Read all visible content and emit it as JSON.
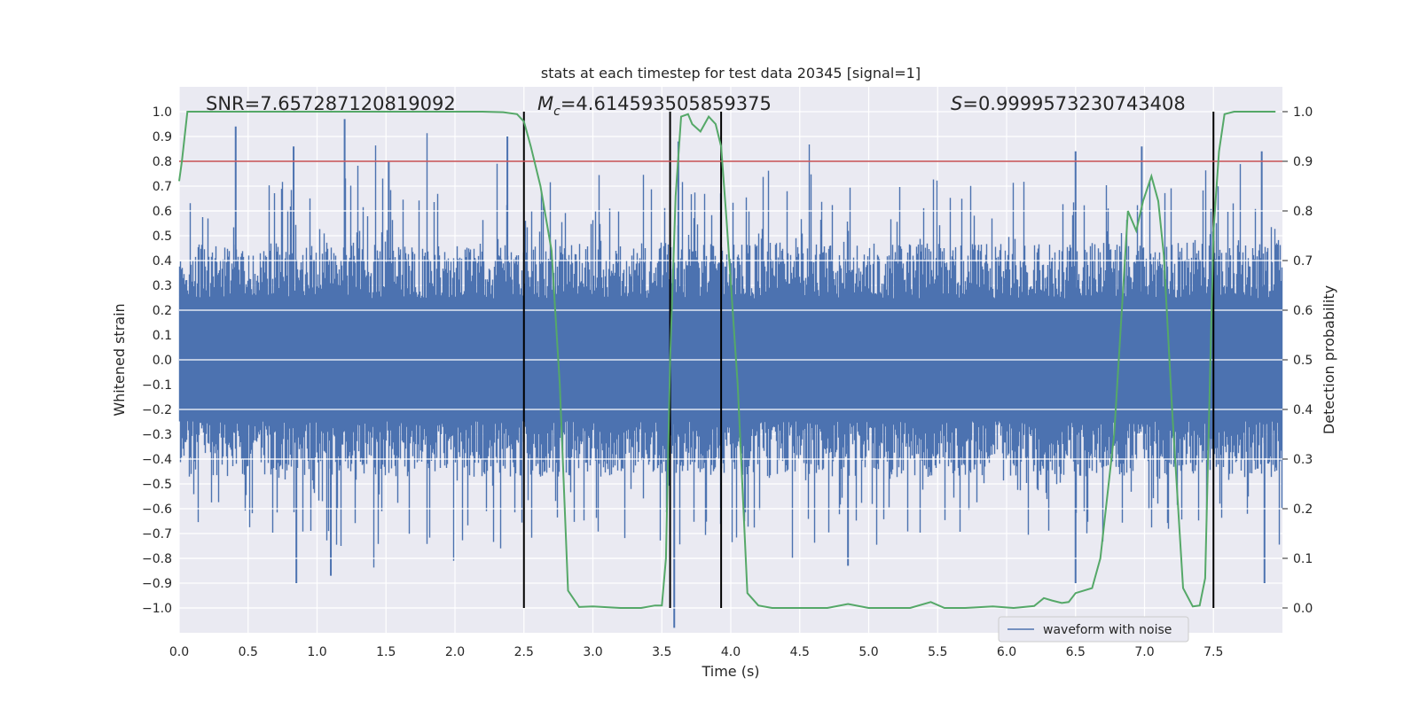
{
  "chart_data": {
    "type": "line",
    "title": "stats at each timestep for test data 20345 [signal=1]",
    "xlabel": "Time (s)",
    "ylabel": "Whitened strain",
    "y2label": "Detection probability",
    "xlim": [
      0.0,
      8.0
    ],
    "ylim": [
      -1.1,
      1.1
    ],
    "y2lim": [
      -0.05,
      1.05
    ],
    "x_ticks": [
      0.0,
      0.5,
      1.0,
      1.5,
      2.0,
      2.5,
      3.0,
      3.5,
      4.0,
      4.5,
      5.0,
      5.5,
      6.0,
      6.5,
      7.0,
      7.5
    ],
    "x_tick_labels": [
      "0.0",
      "0.5",
      "1.0",
      "1.5",
      "2.0",
      "2.5",
      "3.0",
      "3.5",
      "4.0",
      "4.5",
      "5.0",
      "5.5",
      "6.0",
      "6.5",
      "7.0",
      "7.5"
    ],
    "y_ticks": [
      1.0,
      0.9,
      0.8,
      0.7,
      0.6,
      0.5,
      0.4,
      0.3,
      0.2,
      0.1,
      0.0,
      -0.1,
      -0.2,
      -0.3,
      -0.4,
      -0.5,
      -0.6,
      -0.7,
      -0.8,
      -0.9,
      -1.0
    ],
    "y_tick_labels": [
      "1.0",
      "0.9",
      "0.8",
      "0.7",
      "0.6",
      "0.5",
      "0.4",
      "0.3",
      "0.2",
      "0.1",
      "0.0",
      "−0.1",
      "−0.2",
      "−0.3",
      "−0.4",
      "−0.5",
      "−0.6",
      "−0.7",
      "−0.8",
      "−0.9",
      "−1.0"
    ],
    "y2_ticks": [
      1.0,
      0.9,
      0.8,
      0.7,
      0.6,
      0.5,
      0.4,
      0.3,
      0.2,
      0.1,
      0.0
    ],
    "y2_tick_labels": [
      "1.0",
      "0.9",
      "0.8",
      "0.7",
      "0.6",
      "0.5",
      "0.4",
      "0.3",
      "0.2",
      "0.1",
      "0.0"
    ],
    "annotations": {
      "snr": "SNR=7.657287120819092",
      "mc_symbol": "M",
      "mc_subscript": "c",
      "mc_value": "=4.614593505859375",
      "s_symbol": "S",
      "s_value": "=0.9999573230743408"
    },
    "threshold": {
      "y2": 0.9,
      "color": "#c44e52"
    },
    "vertical_lines": [
      2.5,
      3.56,
      3.93,
      7.5
    ],
    "vertical_line_y2_range": [
      0.0,
      1.0
    ],
    "waveform": {
      "name": "waveform with noise",
      "color": "#4c72b0",
      "x_range": [
        0.0,
        8.0
      ],
      "envelope": 0.45,
      "notable_peaks": [
        {
          "x": 0.41,
          "y": 0.94
        },
        {
          "x": 0.83,
          "y": 0.86
        },
        {
          "x": 1.2,
          "y": 0.97
        },
        {
          "x": 1.52,
          "y": 0.8
        },
        {
          "x": 2.38,
          "y": 0.9
        },
        {
          "x": 3.62,
          "y": 0.88
        },
        {
          "x": 6.5,
          "y": 0.84
        },
        {
          "x": 6.98,
          "y": 0.86
        },
        {
          "x": 7.85,
          "y": 0.84
        },
        {
          "x": 0.85,
          "y": -0.9
        },
        {
          "x": 1.1,
          "y": -0.87
        },
        {
          "x": 3.59,
          "y": -1.08
        },
        {
          "x": 4.85,
          "y": -0.83
        },
        {
          "x": 6.5,
          "y": -0.9
        },
        {
          "x": 7.87,
          "y": -0.9
        }
      ]
    },
    "probability": {
      "name": "Detection probability",
      "color": "#55a868",
      "x": [
        0.0,
        0.02,
        0.06,
        0.2,
        0.5,
        1.0,
        1.5,
        2.0,
        2.2,
        2.35,
        2.45,
        2.5,
        2.55,
        2.62,
        2.7,
        2.76,
        2.82,
        2.9,
        3.0,
        3.2,
        3.35,
        3.45,
        3.5,
        3.53,
        3.56,
        3.6,
        3.64,
        3.69,
        3.72,
        3.78,
        3.84,
        3.89,
        3.93,
        3.97,
        4.05,
        4.12,
        4.2,
        4.3,
        4.5,
        4.7,
        4.85,
        5.0,
        5.2,
        5.3,
        5.45,
        5.55,
        5.7,
        5.9,
        6.05,
        6.2,
        6.27,
        6.33,
        6.4,
        6.45,
        6.5,
        6.62,
        6.68,
        6.78,
        6.88,
        6.94,
        6.99,
        7.05,
        7.1,
        7.14,
        7.2,
        7.28,
        7.35,
        7.4,
        7.44,
        7.5,
        7.54,
        7.58,
        7.65,
        7.75,
        7.95
      ],
      "y": [
        0.86,
        0.9,
        1.0,
        1.0,
        1.0,
        1.0,
        1.0,
        1.0,
        1.0,
        0.999,
        0.995,
        0.98,
        0.93,
        0.85,
        0.72,
        0.45,
        0.035,
        0.002,
        0.003,
        0.0,
        0.0,
        0.005,
        0.005,
        0.1,
        0.5,
        0.83,
        0.99,
        0.995,
        0.975,
        0.96,
        0.99,
        0.975,
        0.93,
        0.78,
        0.45,
        0.03,
        0.005,
        0.0,
        0.0,
        0.0,
        0.008,
        0.0,
        0.0,
        0.0,
        0.012,
        0.0,
        0.0,
        0.003,
        0.0,
        0.004,
        0.02,
        0.015,
        0.01,
        0.012,
        0.03,
        0.04,
        0.1,
        0.35,
        0.8,
        0.76,
        0.82,
        0.87,
        0.82,
        0.71,
        0.4,
        0.04,
        0.003,
        0.005,
        0.06,
        0.76,
        0.92,
        0.995,
        1.0,
        1.0,
        1.0
      ]
    },
    "legend": {
      "entries": [
        "waveform with noise"
      ],
      "placement": "lower-right"
    },
    "grid": true,
    "background": "#eaeaf2"
  }
}
